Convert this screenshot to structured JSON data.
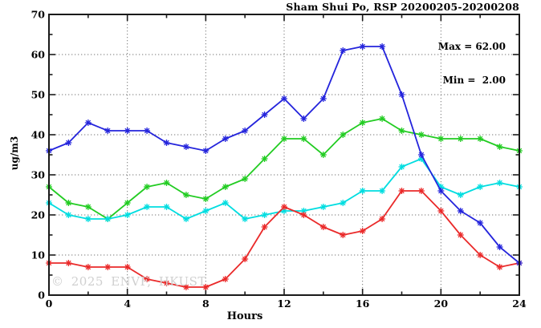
{
  "header": {
    "title": "Sham Shui Po, RSP 20200205-20200208"
  },
  "annotation": {
    "max_line": "Max = 62.00",
    "min_line": "Min =  2.00"
  },
  "watermark": "© 2025 ENVF, HKUST",
  "axes": {
    "xlabel": "Hours",
    "ylabel": "ug/m3"
  },
  "chart_data": {
    "type": "line",
    "title": "Sham Shui Po, RSP 20200205-20200208",
    "xlabel": "Hours",
    "ylabel": "ug/m3",
    "xlim": [
      0,
      24
    ],
    "ylim": [
      0,
      70
    ],
    "x_major_ticks": [
      0,
      4,
      8,
      12,
      16,
      20,
      24
    ],
    "x_minor_ticks": [
      2,
      6,
      10,
      14,
      18,
      22
    ],
    "y_major_ticks": [
      0,
      10,
      20,
      30,
      40,
      50,
      60,
      70
    ],
    "y_minor_ticks": [
      5,
      15,
      25,
      35,
      45,
      55,
      65
    ],
    "x_gridlines": [
      4,
      8,
      12,
      16,
      20
    ],
    "y_gridlines": [
      10,
      20,
      30,
      40,
      50,
      60
    ],
    "grid_style": "dotted",
    "legend_position": "none",
    "max_value": 62.0,
    "min_value": 2.0,
    "x": [
      0,
      1,
      2,
      3,
      4,
      5,
      6,
      7,
      8,
      9,
      10,
      11,
      12,
      13,
      14,
      15,
      16,
      17,
      18,
      19,
      20,
      21,
      22,
      23,
      24
    ],
    "series": [
      {
        "name": "line-green",
        "color": "#22cc22",
        "values": [
          27,
          23,
          22,
          19,
          23,
          27,
          28,
          25,
          24,
          27,
          29,
          34,
          39,
          39,
          35,
          40,
          43,
          44,
          41,
          40,
          39,
          39,
          39,
          37,
          36
        ]
      },
      {
        "name": "line-cyan",
        "color": "#00dde0",
        "values": [
          23,
          20,
          19,
          19,
          20,
          22,
          22,
          19,
          21,
          23,
          19,
          20,
          21,
          21,
          22,
          23,
          26,
          26,
          32,
          34,
          27,
          25,
          27,
          28,
          27
        ]
      },
      {
        "name": "line-red",
        "color": "#ea2a2a",
        "values": [
          8,
          8,
          7,
          7,
          7,
          4,
          3,
          2,
          2,
          4,
          9,
          17,
          22,
          20,
          17,
          15,
          16,
          19,
          26,
          26,
          21,
          15,
          10,
          7,
          8
        ]
      },
      {
        "name": "line-blue",
        "color": "#2424dc",
        "values": [
          36,
          38,
          43,
          41,
          41,
          41,
          38,
          37,
          36,
          39,
          41,
          45,
          49,
          44,
          49,
          61,
          62,
          62,
          50,
          35,
          26,
          21,
          18,
          12,
          8
        ]
      }
    ],
    "colors": {
      "grid": "#777777",
      "frame": "#1a1a1a",
      "tick_label": "#000000"
    }
  }
}
